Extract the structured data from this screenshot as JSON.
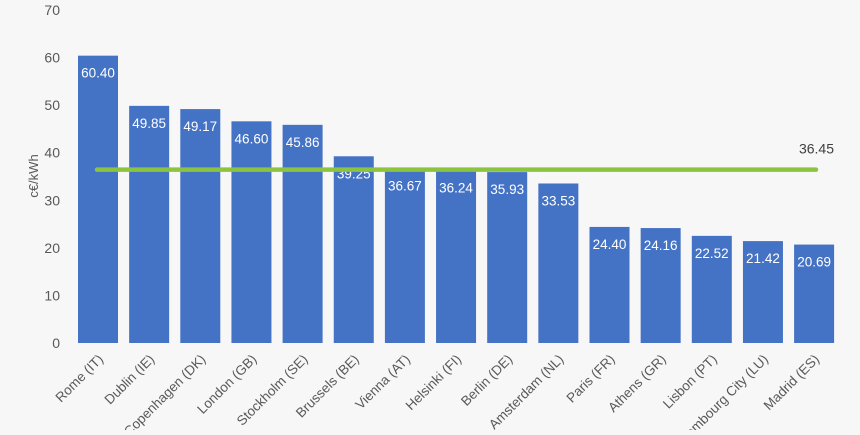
{
  "chart_data": {
    "type": "bar",
    "title": "",
    "xlabel": "",
    "ylabel": "c€/kWh",
    "ylim": [
      0,
      70
    ],
    "yticks": [
      0,
      10,
      20,
      30,
      40,
      50,
      60,
      70
    ],
    "grid": false,
    "categories": [
      "Rome (IT)",
      "Dublin (IE)",
      "Copenhagen (DK)",
      "London (GB)",
      "Stockholm (SE)",
      "Brussels (BE)",
      "Vienna (AT)",
      "Helsinki (FI)",
      "Berlin (DE)",
      "Amsterdam (NL)",
      "Paris (FR)",
      "Athens (GR)",
      "Lisbon (PT)",
      "Luxembourg City (LU)",
      "Madrid (ES)"
    ],
    "values": [
      60.4,
      49.85,
      49.17,
      46.6,
      45.86,
      39.25,
      36.67,
      36.24,
      35.93,
      33.53,
      24.4,
      24.16,
      22.52,
      21.42,
      20.69
    ],
    "data_labels": [
      "60.40",
      "49.85",
      "49.17",
      "46.60",
      "45.86",
      "39.25",
      "36.67",
      "36.24",
      "35.93",
      "33.53",
      "24.40",
      "24.16",
      "22.52",
      "21.42",
      "20.69"
    ],
    "average_line": {
      "value": 36.45,
      "label": "36.45",
      "color": "#8cc43f"
    },
    "bar_color": "#4472c4"
  }
}
